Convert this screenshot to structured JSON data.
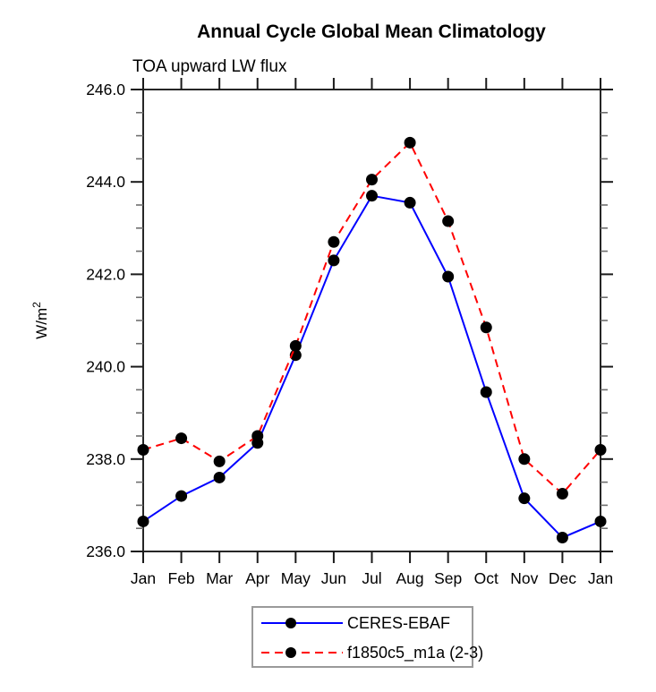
{
  "page": {
    "background": "#ffffff"
  },
  "chart_data": {
    "type": "line",
    "title": "Annual Cycle Global Mean Climatology",
    "subtitle": "TOA upward LW flux",
    "ylabel": "W/m²",
    "ylabel_base": "W/m",
    "ylabel_exponent": "2",
    "categories": [
      "Jan",
      "Feb",
      "Mar",
      "Apr",
      "May",
      "Jun",
      "Jul",
      "Aug",
      "Sep",
      "Oct",
      "Nov",
      "Dec",
      "Jan"
    ],
    "ylim": [
      236.0,
      246.0
    ],
    "ytick_major_step": 2.0,
    "ytick_minor_step": 0.5,
    "ytick_labels": [
      "236.0",
      "238.0",
      "240.0",
      "242.0",
      "244.0",
      "246.0"
    ],
    "grid": false,
    "legend_position": "bottom-center",
    "series": [
      {
        "name": "CERES-EBAF",
        "color": "#0000ff",
        "style": "solid",
        "marker": "circle",
        "marker_color": "#000000",
        "values": [
          236.65,
          237.2,
          237.6,
          238.35,
          240.25,
          242.3,
          243.7,
          243.55,
          241.95,
          239.45,
          237.15,
          236.3,
          236.65
        ]
      },
      {
        "name": "f1850c5_m1a (2-3)",
        "color": "#ff0000",
        "style": "dashed",
        "marker": "circle",
        "marker_color": "#000000",
        "values": [
          238.2,
          238.45,
          237.95,
          238.5,
          240.45,
          242.7,
          244.05,
          244.85,
          243.15,
          240.85,
          238.0,
          237.25,
          238.2
        ]
      }
    ]
  }
}
